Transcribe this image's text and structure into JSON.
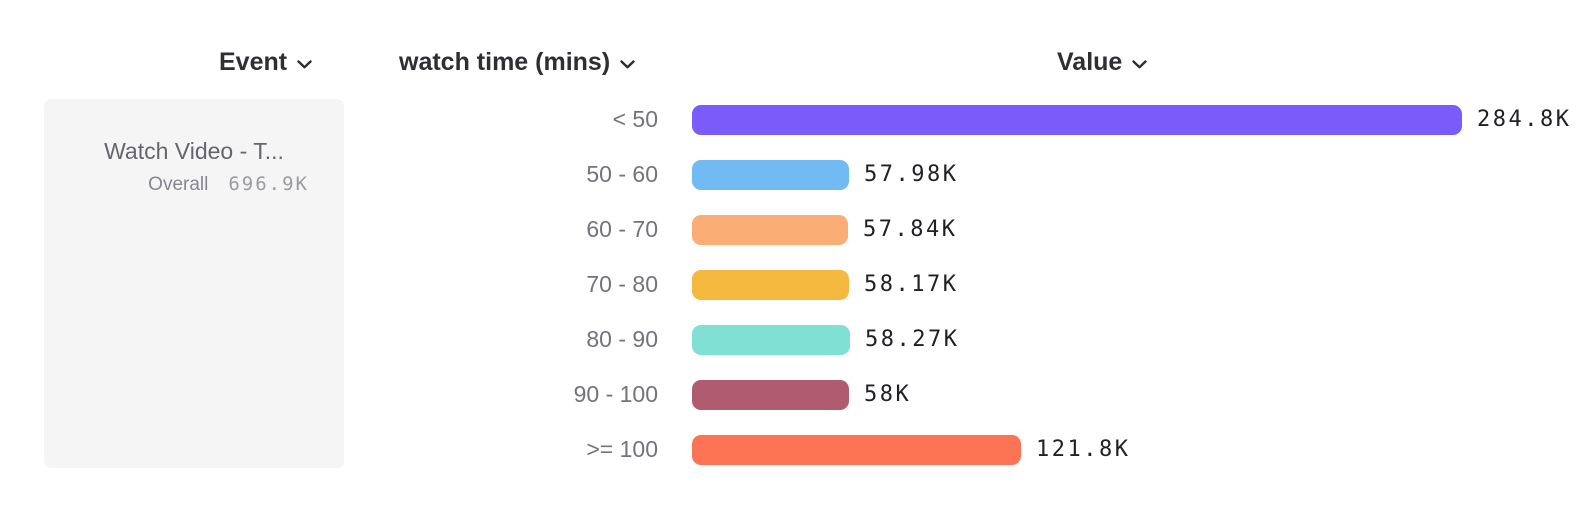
{
  "headers": {
    "event": {
      "label": "Event"
    },
    "breakdown": {
      "label": "watch time (mins)"
    },
    "value": {
      "label": "Value"
    }
  },
  "legend": {
    "event_name": "Watch Video - T...",
    "overall_label": "Overall",
    "overall_value": "696.9K"
  },
  "chart_data": {
    "type": "bar",
    "orientation": "horizontal",
    "title": "",
    "xlabel": "Value",
    "ylabel": "watch time (mins)",
    "series_name": "Watch Video - T...",
    "overall_total": 696900,
    "categories": [
      "< 50",
      "50 - 60",
      "60 - 70",
      "70 - 80",
      "80 - 90",
      "90 - 100",
      ">= 100"
    ],
    "values": [
      284800,
      57980,
      57840,
      58170,
      58270,
      58000,
      121800
    ],
    "value_labels": [
      "284.8K",
      "57.98K",
      "57.84K",
      "58.17K",
      "58.27K",
      "58K",
      "121.8K"
    ],
    "colors": [
      "#7A5CFA",
      "#72BAF2",
      "#FBAD76",
      "#F6B93F",
      "#80E0D3",
      "#B05B70",
      "#FC7454"
    ],
    "xlim": [
      0,
      284800
    ],
    "grid": false,
    "legend_position": "left"
  }
}
